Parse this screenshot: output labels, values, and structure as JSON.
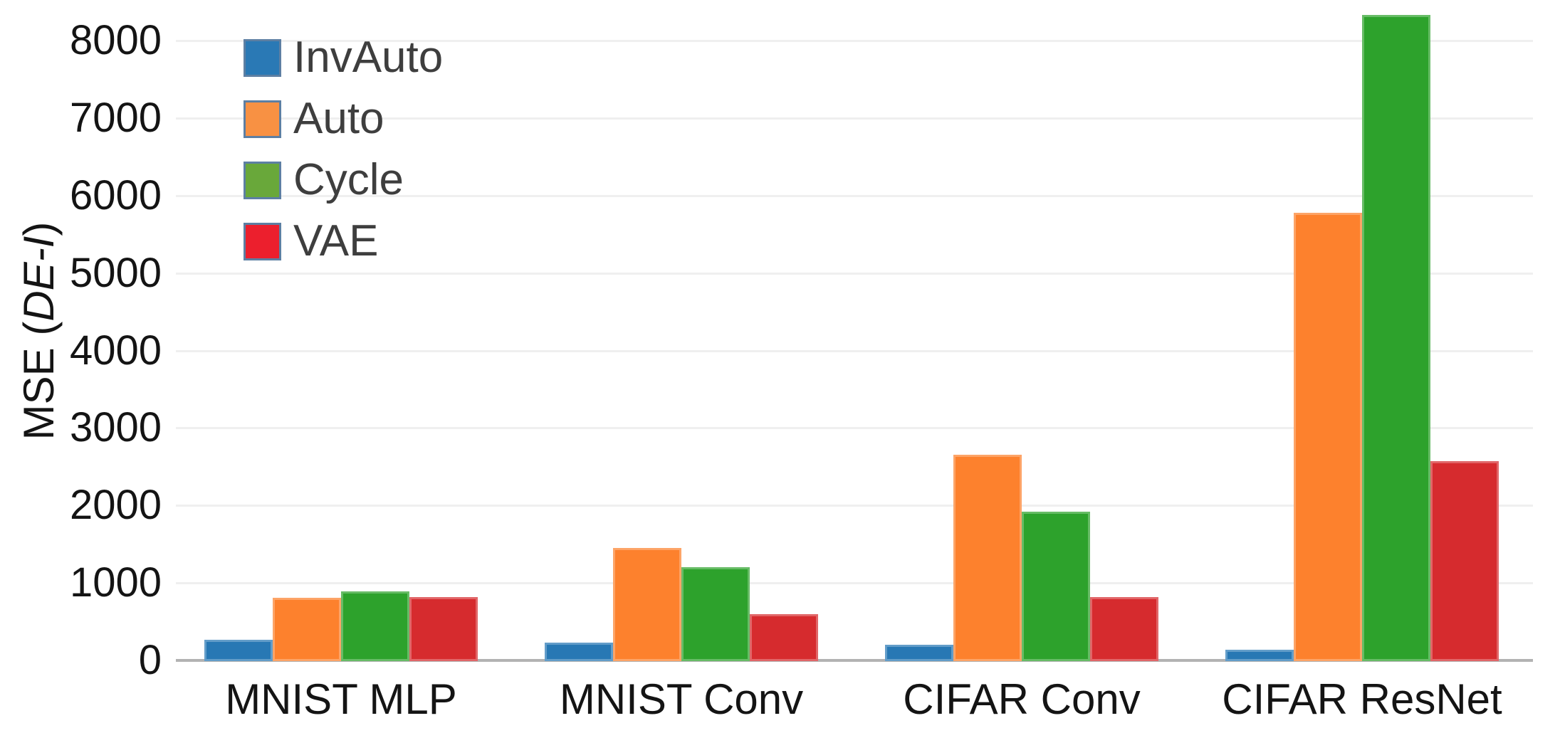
{
  "chart_data": {
    "type": "bar",
    "title": "",
    "ylabel_prefix": "MSE (",
    "ylabel_italic": "DE-I",
    "ylabel_suffix": ")",
    "xlabel": "",
    "categories": [
      "MNIST MLP",
      "MNIST Conv",
      "CIFAR Conv",
      "CIFAR ResNet"
    ],
    "series": [
      {
        "name": "InvAuto",
        "color": "#2878b4",
        "legend_swatch": "#2a79b5",
        "values": [
          265,
          230,
          200,
          140
        ]
      },
      {
        "name": "Auto",
        "color": "#fd812d",
        "legend_swatch": "#f89143",
        "values": [
          810,
          1450,
          2650,
          5780
        ]
      },
      {
        "name": "Cycle",
        "color": "#2da22c",
        "legend_swatch": "#69a83a",
        "values": [
          890,
          1200,
          1920,
          8330
        ]
      },
      {
        "name": "VAE",
        "color": "#d62b2e",
        "legend_swatch": "#ec1f2d",
        "values": [
          820,
          600,
          820,
          2570
        ]
      }
    ],
    "yticks": [
      0,
      1000,
      2000,
      3000,
      4000,
      5000,
      6000,
      7000,
      8000
    ],
    "ylim": [
      0,
      8520
    ],
    "grid": "horizontal-only",
    "gridline_color": "#efefef",
    "axis_line_color": "#b2b2b2",
    "tick_label_color": "#141414",
    "legend_position": "top-left",
    "legend_text_color": "#3e3e3e",
    "legend_swatch_border_color": "#5d7fa3"
  }
}
